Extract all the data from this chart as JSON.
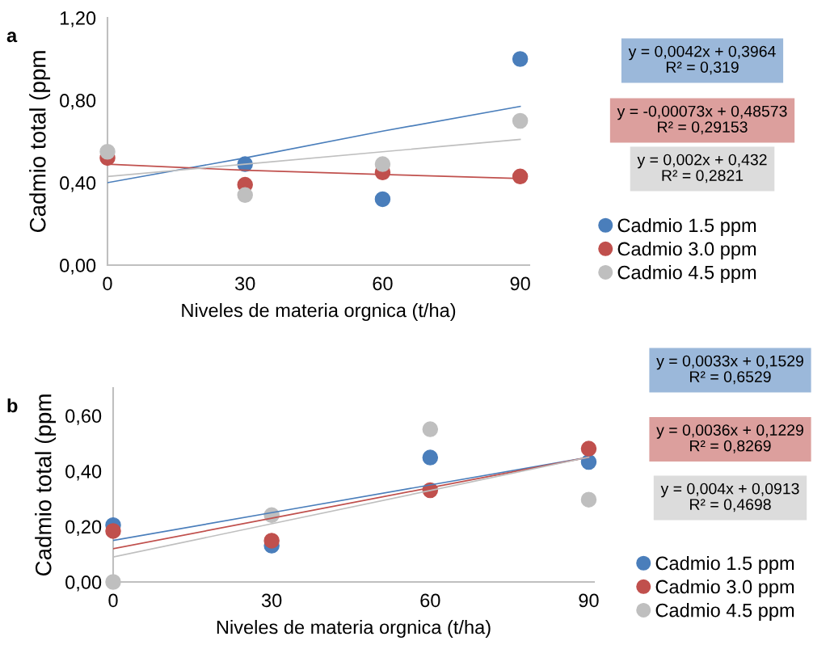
{
  "chart_data": [
    {
      "type": "scatter",
      "title": "a",
      "xlabel": "Niveles de materia orgnica (t/ha)",
      "ylabel": "Cadmio total (ppm",
      "x": [
        0,
        30,
        60,
        90
      ],
      "xlim": [
        0,
        92
      ],
      "xticks": [
        0,
        30,
        60,
        90
      ],
      "ylim": [
        0,
        1.2
      ],
      "yticks": [
        {
          "value": 0,
          "label": "0,00"
        },
        {
          "value": 0.4,
          "label": "0,40"
        },
        {
          "value": 0.8,
          "label": "0,80"
        },
        {
          "value": 1.2,
          "label": "1,20"
        }
      ],
      "grid": false,
      "legend": "right",
      "marker": "circle",
      "series": [
        {
          "name": "Cadmio 1.5 ppm",
          "color": "#4a7ebb",
          "values": [
            null,
            0.49,
            0.32,
            1.0
          ]
        },
        {
          "name": "Cadmio 3.0 ppm",
          "color": "#c0504d",
          "values": [
            0.52,
            0.39,
            0.45,
            0.43
          ]
        },
        {
          "name": "Cadmio 4.5 ppm",
          "color": "#bfbfbf",
          "values": [
            0.55,
            0.34,
            0.49,
            0.7
          ]
        },
        {
          "type": "line",
          "marker": "none",
          "color": "#4a7ebb",
          "values": [
            0.4,
            0.52,
            0.65,
            0.77
          ]
        },
        {
          "type": "line",
          "marker": "none",
          "color": "#c0504d",
          "values": [
            0.49,
            0.46,
            0.44,
            0.42
          ]
        },
        {
          "type": "line",
          "marker": "none",
          "color": "#bfbfbf",
          "values": [
            0.43,
            0.49,
            0.55,
            0.61
          ]
        }
      ],
      "annotations": [
        "y = 0,0042x + 0,3964\nR² = 0,319",
        "y = -0,00073x + 0,48573\nR² = 0,29153",
        "y = 0,002x + 0,432\nR² = 0,2821"
      ]
    },
    {
      "type": "scatter",
      "title": "b",
      "xlabel": "Niveles de materia orgnica (t/ha)",
      "ylabel": "Cadmio total (ppm",
      "x": [
        0,
        30,
        60,
        90
      ],
      "xlim": [
        0,
        91
      ],
      "xticks": [
        0,
        30,
        60,
        90
      ],
      "ylim": [
        0,
        0.7
      ],
      "yticks": [
        {
          "value": 0,
          "label": "0,00"
        },
        {
          "value": 0.2,
          "label": "0,20"
        },
        {
          "value": 0.4,
          "label": "0,40"
        },
        {
          "value": 0.6,
          "label": "0,60"
        }
      ],
      "grid": false,
      "legend": "right",
      "marker": "circle",
      "series": [
        {
          "name": "Cadmio 1.5 ppm",
          "color": "#4a7ebb",
          "values": [
            0.205,
            0.131,
            0.449,
            0.433
          ]
        },
        {
          "name": "Cadmio 3.0 ppm",
          "color": "#c0504d",
          "values": [
            0.184,
            0.149,
            0.331,
            0.481
          ]
        },
        {
          "name": "Cadmio 4.5 ppm",
          "color": "#bfbfbf",
          "values": [
            0.0,
            0.241,
            0.551,
            0.297
          ]
        },
        {
          "type": "line",
          "marker": "none",
          "color": "#4a7ebb",
          "values": [
            0.15,
            0.25,
            0.35,
            0.45
          ]
        },
        {
          "type": "line",
          "marker": "none",
          "color": "#c0504d",
          "values": [
            0.12,
            0.23,
            0.34,
            0.45
          ]
        },
        {
          "type": "line",
          "marker": "none",
          "color": "#bfbfbf",
          "values": [
            0.09,
            0.21,
            0.33,
            0.45
          ]
        }
      ],
      "annotations": [
        "y = 0,0033x + 0,1529\nR² = 0,6529",
        "y = 0,0036x + 0,1229\nR² = 0,8269",
        "y = 0,004x + 0,0913\nR² = 0,4698"
      ]
    }
  ]
}
